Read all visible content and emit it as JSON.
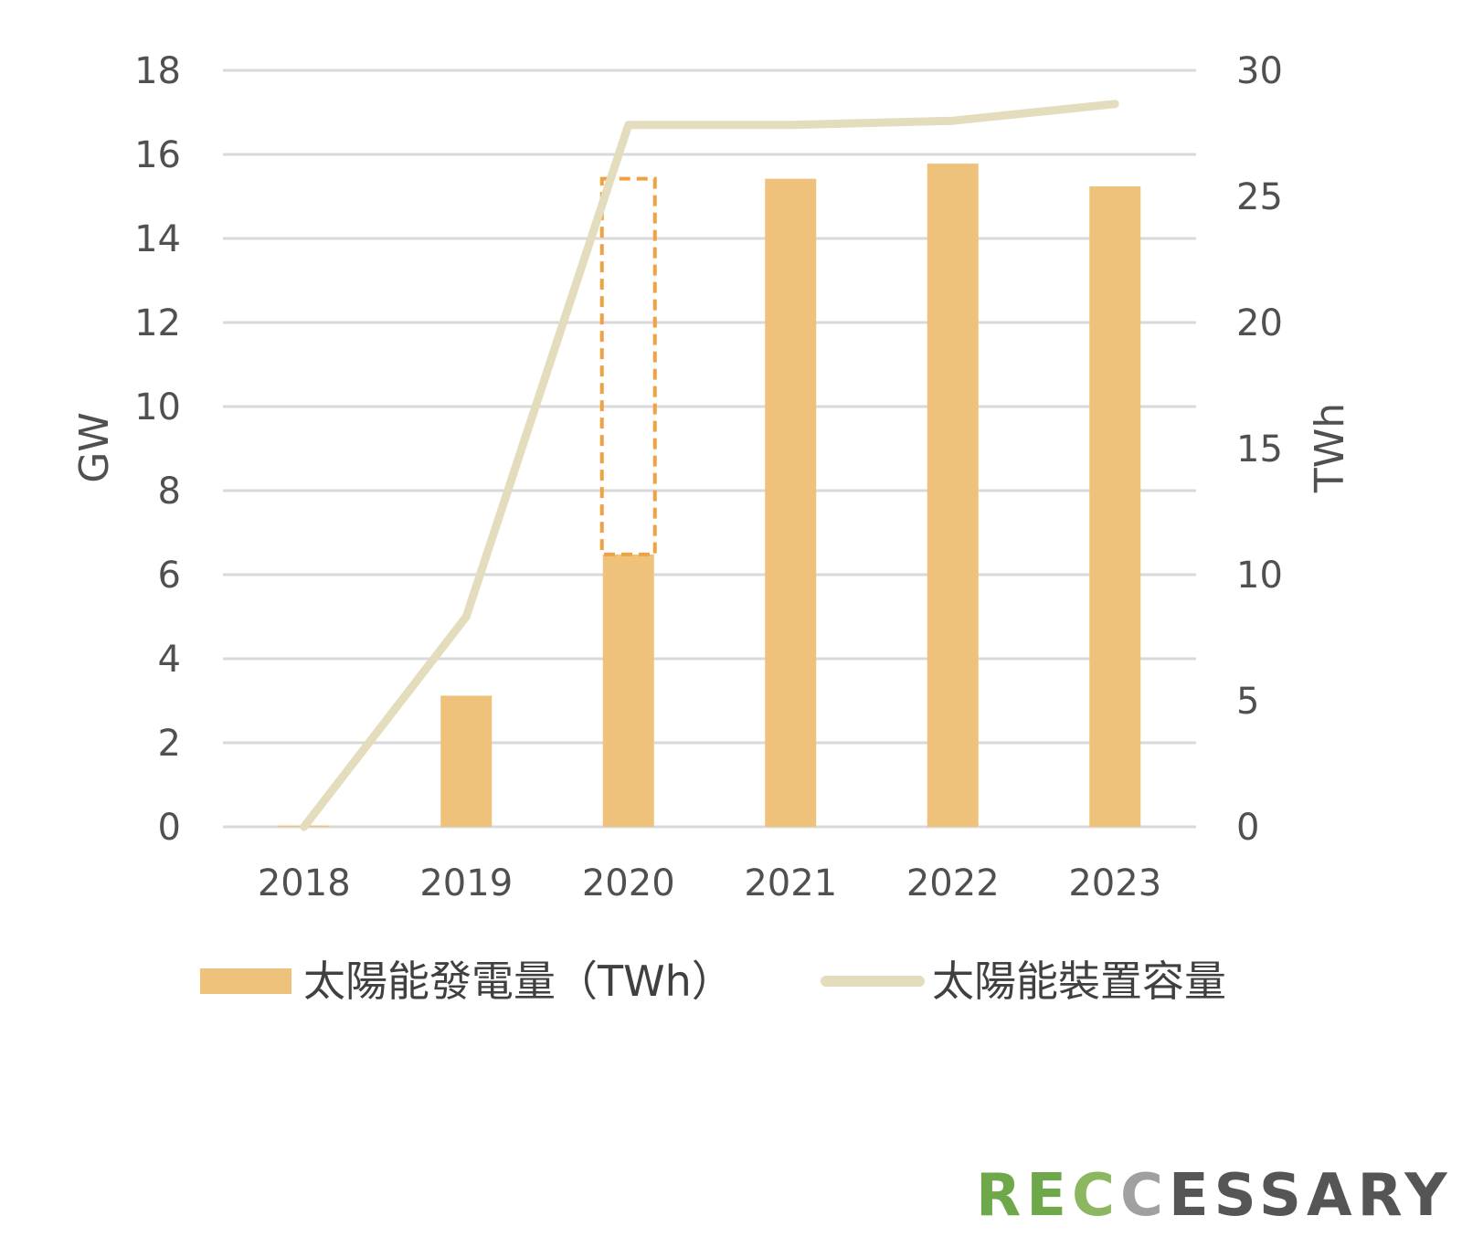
{
  "chart_data": {
    "type": "bar",
    "categories": [
      "2018",
      "2019",
      "2020",
      "2021",
      "2022",
      "2023"
    ],
    "series": [
      {
        "name": "太陽能發電量（TWh）",
        "kind": "bar",
        "axis": "right",
        "color": "#efc27c",
        "values": [
          0.05,
          5.2,
          10.8,
          25.7,
          26.3,
          25.4
        ]
      },
      {
        "name": "太陽能裝置容量",
        "kind": "line",
        "axis": "left",
        "color": "#e3ddbd",
        "values": [
          0.0,
          5.0,
          16.7,
          16.7,
          16.8,
          17.2
        ]
      }
    ],
    "highlight": {
      "category": "2020",
      "from": 10.8,
      "to": 25.7,
      "axis": "right",
      "color": "#f0a242",
      "style": "dashed"
    },
    "y_left": {
      "label": "GW",
      "min": 0,
      "max": 18,
      "ticks": [
        0,
        2,
        4,
        6,
        8,
        10,
        12,
        14,
        16,
        18
      ]
    },
    "y_right": {
      "label": "TWh",
      "min": 0,
      "max": 30,
      "ticks": [
        0,
        5,
        10,
        15,
        20,
        25,
        30
      ]
    },
    "grid": true,
    "legend_position": "bottom"
  },
  "logo": {
    "parts": [
      {
        "text": "R",
        "color": "#6ea84a"
      },
      {
        "text": "E",
        "color": "#6ea84a"
      },
      {
        "text": "C",
        "color": "#8cb660"
      },
      {
        "text": "C",
        "color": "#a0a0a0"
      },
      {
        "text": "ESSARY",
        "color": "#555555"
      }
    ]
  }
}
